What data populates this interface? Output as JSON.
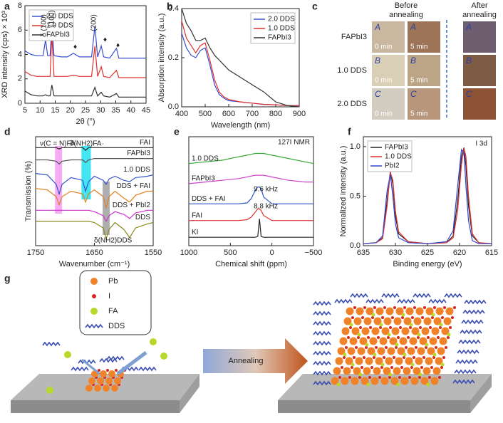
{
  "panel_labels": [
    "a",
    "b",
    "c",
    "d",
    "e",
    "f",
    "g"
  ],
  "chart_data": [
    {
      "type": "line",
      "xlabel": "2θ (°)",
      "ylabel": "XRD intensity (cps) × 10³",
      "legend": "upper left",
      "xlim": [
        5,
        45
      ],
      "xticks": [
        5,
        10,
        15,
        20,
        25,
        30,
        35,
        40,
        45
      ],
      "ylim": [
        0,
        8
      ],
      "yticks": [
        0,
        2,
        4,
        6,
        8
      ],
      "annotations": [
        "δ (100)",
        "(100)",
        "♦",
        "(200)",
        "♦",
        "♦"
      ],
      "x": [
        5,
        7,
        9,
        11,
        11.8,
        12.5,
        13.3,
        13.9,
        14.6,
        17,
        19,
        21,
        23,
        25,
        27,
        28.1,
        29,
        30.2,
        31,
        33,
        35.2,
        36,
        38,
        40,
        42,
        45
      ],
      "series": [
        {
          "name": "2.0 DDS",
          "color": "#3a4fd0",
          "values": [
            4.3,
            4.0,
            3.9,
            3.9,
            5.2,
            3.9,
            3.9,
            6.4,
            3.9,
            3.8,
            3.8,
            4.1,
            3.8,
            3.8,
            3.8,
            6.3,
            3.8,
            4.7,
            3.8,
            3.7,
            4.5,
            3.7,
            3.7,
            3.7,
            3.7,
            3.7
          ]
        },
        {
          "name": "1.0 DDS",
          "color": "#e03030",
          "values": [
            2.6,
            2.3,
            2.2,
            2.2,
            2.2,
            2.2,
            2.2,
            5.6,
            2.2,
            2.2,
            2.2,
            2.3,
            2.2,
            2.2,
            2.2,
            4.7,
            2.2,
            3.0,
            2.2,
            2.1,
            2.7,
            2.1,
            2.1,
            2.1,
            2.1,
            2.1
          ]
        },
        {
          "name": "FAPbI3",
          "color": "#333333",
          "values": [
            1.0,
            0.7,
            0.6,
            0.6,
            0.7,
            0.6,
            0.6,
            1.5,
            0.6,
            0.6,
            0.6,
            0.6,
            0.6,
            0.6,
            0.6,
            1.3,
            0.6,
            0.9,
            0.6,
            0.5,
            0.8,
            0.5,
            0.5,
            0.5,
            0.5,
            0.5
          ]
        }
      ]
    },
    {
      "type": "line",
      "xlabel": "Wavelength (nm)",
      "ylabel": "Absorption intensity (a.u.)",
      "legend": "upper right",
      "xlim": [
        400,
        900
      ],
      "xticks": [
        400,
        500,
        600,
        700,
        800,
        900
      ],
      "ylim": [
        0,
        0.4
      ],
      "yticks": [
        {
          "value": 0,
          "label": "0.0"
        },
        0.2,
        0.4
      ],
      "x": [
        400,
        420,
        440,
        460,
        480,
        500,
        520,
        540,
        560,
        580,
        600,
        650,
        700,
        750,
        800,
        850,
        900
      ],
      "series": [
        {
          "name": "2.0 DDS",
          "color": "#3a4fd0",
          "values": [
            0.3,
            0.24,
            0.21,
            0.2,
            0.23,
            0.24,
            0.17,
            0.09,
            0.05,
            0.035,
            0.025,
            0.02,
            0.015,
            0.01,
            0.008,
            0.005,
            0.005
          ]
        },
        {
          "name": "1.0 DDS",
          "color": "#e03030",
          "values": [
            0.35,
            0.28,
            0.25,
            0.22,
            0.25,
            0.26,
            0.19,
            0.11,
            0.06,
            0.04,
            0.03,
            0.02,
            0.015,
            0.01,
            0.008,
            0.005,
            0.005
          ]
        },
        {
          "name": "FAPbI3",
          "color": "#333333",
          "values": [
            0.4,
            0.34,
            0.31,
            0.27,
            0.27,
            0.28,
            0.24,
            0.21,
            0.19,
            0.17,
            0.15,
            0.12,
            0.09,
            0.06,
            0.02,
            0.005,
            0.0
          ]
        }
      ]
    },
    {
      "type": "line",
      "xlabel": "Wavenumber (cm⁻¹)",
      "ylabel": "Transmission (%)",
      "legend": "inline right",
      "xlim": [
        1750,
        1550
      ],
      "xticks": [
        1750,
        1650,
        1550
      ],
      "ylim": [
        2,
        10
      ],
      "annotations": [
        "ν(C = N)FA·",
        "δ(NH2)FA·",
        "δ(NH2)DDS"
      ],
      "bands": [
        {
          "xlim": [
            1717,
            1705
          ],
          "color": "#f49cf0"
        },
        {
          "xlim": [
            1672,
            1656
          ],
          "color": "#22e0f0"
        },
        {
          "xlim": [
            1636,
            1624
          ],
          "color": "#a0a0a0"
        }
      ],
      "x": [
        1750,
        1730,
        1715,
        1710,
        1705,
        1690,
        1670,
        1665,
        1660,
        1650,
        1635,
        1630,
        1625,
        1615,
        1600,
        1590,
        1580,
        1560,
        1550
      ],
      "series": [
        {
          "name": "FAI",
          "color": "#222222",
          "values": [
            9.2,
            9.2,
            9.2,
            9.1,
            9.2,
            9.2,
            9.2,
            9.0,
            9.2,
            9.2,
            9.2,
            9.2,
            9.2,
            9.2,
            9.2,
            9.2,
            9.2,
            9.2,
            9.2
          ]
        },
        {
          "name": "FAPbI3",
          "color": "#555555",
          "values": [
            8.3,
            8.3,
            8.2,
            8.0,
            8.2,
            8.3,
            8.3,
            8.1,
            8.3,
            8.4,
            8.4,
            8.4,
            8.4,
            8.4,
            8.4,
            8.4,
            8.4,
            8.4,
            8.4
          ]
        },
        {
          "name": "1.0 DDS",
          "color": "#3355cc",
          "values": [
            7.3,
            7.2,
            6.5,
            5.8,
            6.5,
            7.0,
            6.8,
            6.0,
            6.7,
            7.1,
            6.8,
            6.5,
            6.9,
            7.1,
            6.8,
            6.7,
            7.0,
            7.1,
            7.2
          ]
        },
        {
          "name": "DDS + FAI",
          "color": "#e08020",
          "values": [
            6.2,
            6.1,
            5.6,
            5.0,
            5.6,
            6.0,
            5.8,
            5.2,
            5.8,
            6.1,
            5.6,
            4.8,
            5.6,
            6.0,
            5.5,
            5.2,
            5.7,
            6.0,
            6.0
          ]
        },
        {
          "name": "DDS + PbI2",
          "color": "#cc33cc",
          "values": [
            4.6,
            4.6,
            4.6,
            4.6,
            4.6,
            4.6,
            4.6,
            4.6,
            4.6,
            4.5,
            4.2,
            3.8,
            4.2,
            4.5,
            4.3,
            4.0,
            4.4,
            4.6,
            4.6
          ]
        },
        {
          "name": "DDS",
          "color": "#888820",
          "values": [
            3.8,
            3.8,
            3.8,
            3.8,
            3.8,
            3.8,
            3.8,
            3.8,
            3.8,
            3.7,
            3.3,
            2.5,
            3.2,
            3.7,
            3.2,
            2.6,
            3.3,
            3.6,
            3.7
          ]
        }
      ]
    },
    {
      "type": "line",
      "xlabel": "Chemical shift (ppm)",
      "legend": "inline left",
      "xlim": [
        1000,
        -500
      ],
      "xticks": [
        1000,
        500,
        0,
        {
          "value": -500,
          "label": "−500"
        }
      ],
      "ylim": [
        0,
        6.5
      ],
      "annotations": [
        "127I NMR",
        "9.6 kHz",
        "8.8 kHz"
      ],
      "x": [
        1000,
        800,
        600,
        400,
        300,
        250,
        200,
        170,
        150,
        130,
        100,
        0,
        -200,
        -400,
        -500
      ],
      "series": [
        {
          "name": "1.0 DDS",
          "color": "#33aa33",
          "values": [
            4.9,
            5.0,
            5.1,
            5.3,
            5.4,
            5.45,
            5.5,
            5.5,
            5.5,
            5.5,
            5.5,
            5.4,
            5.2,
            5.0,
            4.9
          ]
        },
        {
          "name": "FAPbI3",
          "color": "#cc44cc",
          "values": [
            3.7,
            3.8,
            3.9,
            4.0,
            4.1,
            4.15,
            4.2,
            4.2,
            4.2,
            4.2,
            4.2,
            4.1,
            3.9,
            3.8,
            3.8
          ]
        },
        {
          "name": "DDS + FAI",
          "color": "#3355cc",
          "values": [
            2.5,
            2.5,
            2.5,
            2.5,
            2.55,
            2.8,
            3.3,
            3.5,
            3.5,
            3.4,
            2.9,
            2.5,
            2.5,
            2.5,
            2.5
          ]
        },
        {
          "name": "FAI",
          "color": "#e03030",
          "values": [
            1.5,
            1.5,
            1.5,
            1.5,
            1.55,
            1.7,
            2.0,
            2.2,
            2.2,
            2.1,
            1.8,
            1.5,
            1.5,
            1.5,
            1.5
          ]
        },
        {
          "name": "KI",
          "color": "#222222",
          "values": [
            0.5,
            0.5,
            0.5,
            0.5,
            0.5,
            0.5,
            0.5,
            0.55,
            1.6,
            0.55,
            0.5,
            0.5,
            0.5,
            0.5,
            0.5
          ]
        }
      ]
    },
    {
      "type": "line",
      "xlabel": "Binding energy (eV)",
      "ylabel": "Normalized intensity (a.u.)",
      "legend": "upper left",
      "xlim": [
        635,
        615
      ],
      "xticks": [
        635,
        630,
        625,
        620,
        615
      ],
      "ylim": [
        0,
        1.1
      ],
      "yticks": [
        {
          "value": 0,
          "label": "0.0"
        },
        0.5,
        {
          "value": 1,
          "label": "1.0"
        }
      ],
      "annotations": [
        "I 3d"
      ],
      "x": [
        635,
        633,
        632,
        631.3,
        630.8,
        630.4,
        630,
        629.5,
        628,
        625,
        622,
        621,
        620.3,
        619.7,
        619.3,
        619,
        618.6,
        618,
        617,
        615
      ],
      "series": [
        {
          "name": "FAPbI3",
          "color": "#222222",
          "values": [
            0.02,
            0.03,
            0.08,
            0.45,
            0.75,
            0.62,
            0.3,
            0.12,
            0.04,
            0.02,
            0.03,
            0.1,
            0.45,
            0.9,
            0.99,
            0.8,
            0.4,
            0.1,
            0.03,
            0.02
          ]
        },
        {
          "name": "1.0 DDS",
          "color": "#e03030",
          "values": [
            0.02,
            0.03,
            0.07,
            0.4,
            0.74,
            0.66,
            0.35,
            0.14,
            0.04,
            0.02,
            0.03,
            0.08,
            0.35,
            0.82,
            0.98,
            0.9,
            0.5,
            0.12,
            0.03,
            0.02
          ]
        },
        {
          "name": "PbI2",
          "color": "#3344cc",
          "values": [
            0.02,
            0.03,
            0.1,
            0.55,
            0.72,
            0.5,
            0.22,
            0.08,
            0.03,
            0.02,
            0.04,
            0.15,
            0.6,
            0.97,
            0.93,
            0.6,
            0.25,
            0.05,
            0.02,
            0.02
          ]
        }
      ]
    }
  ],
  "photo_panel": {
    "column_headers": [
      "Before annealing",
      "After annealing"
    ],
    "rows": [
      "FAPbI3",
      "1.0 DDS",
      "2.0 DDS"
    ],
    "times": [
      "0 min",
      "5 min"
    ],
    "sample_marks": [
      "A",
      "B",
      "C"
    ]
  },
  "schematic": {
    "legend": [
      "Pb",
      "I",
      "FA",
      "DDS"
    ],
    "process": "Annealing"
  }
}
